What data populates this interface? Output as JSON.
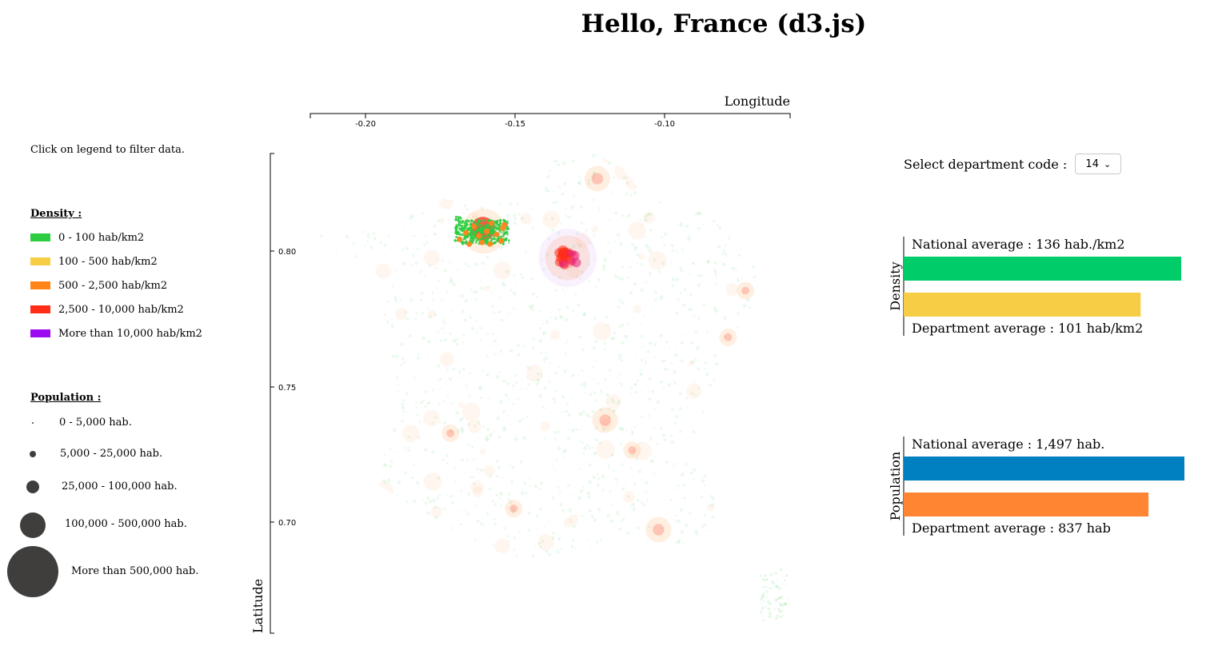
{
  "title": "Hello, France (d3.js)",
  "hint": "Click on legend to filter data.",
  "density_legend": {
    "heading": "Density :",
    "items": [
      {
        "label": "0 - 100 hab/km2",
        "color": "#2ecc40"
      },
      {
        "label": "100 - 500 hab/km2",
        "color": "#f7cd45"
      },
      {
        "label": "500 - 2,500 hab/km2",
        "color": "#ff851b"
      },
      {
        "label": "2,500 - 10,000 hab/km2",
        "color": "#ff2d17"
      },
      {
        "label": "More than 10,000 hab/km2",
        "color": "#9b0df0"
      }
    ]
  },
  "population_legend": {
    "heading": "Population :",
    "items": [
      {
        "label": "0 - 5,000 hab."
      },
      {
        "label": "5,000 - 25,000 hab."
      },
      {
        "label": "25,000 - 100,000 hab."
      },
      {
        "label": "100,000 - 500,000 hab."
      },
      {
        "label": "More than 500,000 hab."
      }
    ],
    "color": "#3f3e3c"
  },
  "selector": {
    "label": "Select department code :",
    "value": "14"
  },
  "chart_data": [
    {
      "type": "scatter",
      "xlabel": "Longitude",
      "ylabel": "Latitude",
      "x_ticks": [
        "-0.20",
        "-0.15",
        "-0.10"
      ],
      "y_ticks": [
        "0.80",
        "0.75",
        "0.70"
      ],
      "xlim": [
        -0.2185,
        -0.0585
      ],
      "ylim": [
        0.6613,
        0.8383
      ],
      "highlighted_department": "14",
      "hotspots": [
        {
          "x": -0.1327,
          "y": 0.7998,
          "level": "dense",
          "size": "large"
        },
        {
          "x": -0.1607,
          "y": 0.8096,
          "level": "medium",
          "size": "large"
        },
        {
          "x": -0.1228,
          "y": 0.829,
          "level": "medium",
          "size": "medium"
        },
        {
          "x": -0.1202,
          "y": 0.7399,
          "level": "medium",
          "size": "medium"
        },
        {
          "x": -0.1112,
          "y": 0.7288,
          "level": "medium",
          "size": "small"
        },
        {
          "x": -0.1718,
          "y": 0.7351,
          "level": "medium",
          "size": "small"
        },
        {
          "x": -0.1507,
          "y": 0.7073,
          "level": "medium",
          "size": "small"
        },
        {
          "x": -0.1024,
          "y": 0.6995,
          "level": "medium",
          "size": "medium"
        },
        {
          "x": -0.0734,
          "y": 0.7877,
          "level": "medium",
          "size": "small"
        },
        {
          "x": -0.0792,
          "y": 0.7705,
          "level": "medium",
          "size": "small"
        }
      ]
    },
    {
      "type": "bar",
      "ylabel": "Density",
      "categories": [
        "National average",
        "Department average"
      ],
      "values": [
        136,
        101
      ],
      "texts": [
        "National average : 136 hab./km2",
        "Department average : 101 hab/km2"
      ],
      "colors": [
        "#00cc6a",
        "#f7cd45"
      ]
    },
    {
      "type": "bar",
      "ylabel": "Population",
      "categories": [
        "National average",
        "Department average"
      ],
      "values": [
        1497,
        837
      ],
      "texts": [
        "National average : 1,497 hab.",
        "Department average : 837 hab"
      ],
      "colors": [
        "#0080c0",
        "#ff8533"
      ]
    }
  ]
}
